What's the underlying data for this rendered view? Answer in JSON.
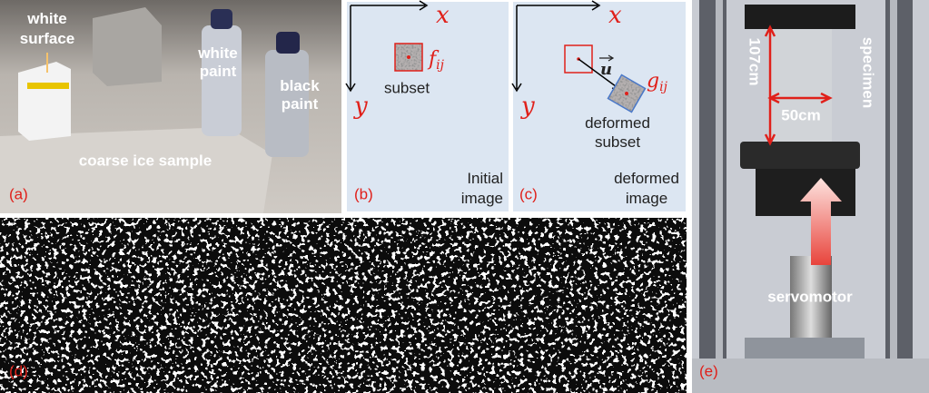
{
  "panel_a": {
    "label": "(a)",
    "white_surface": [
      "white",
      "surface"
    ],
    "white_paint": [
      "white",
      "paint"
    ],
    "black_paint": [
      "black",
      "paint"
    ],
    "sample": "coarse ice sample"
  },
  "panel_b": {
    "label": "(b)",
    "x_axis": "x",
    "y_axis": "y",
    "symbol": {
      "base": "f",
      "subscript": "ij"
    },
    "subset": "subset",
    "caption": [
      "Initial",
      "image"
    ]
  },
  "panel_c": {
    "label": "(c)",
    "x_axis": "x",
    "y_axis": "y",
    "vector": "u",
    "symbol": {
      "base": "g",
      "subscript": "ij"
    },
    "subset": [
      "deformed",
      "subset"
    ],
    "caption": [
      "deformed",
      "image"
    ]
  },
  "panel_d": {
    "label": "(d)"
  },
  "panel_e": {
    "label": "(e)",
    "height": "107cm",
    "width": "50cm",
    "specimen": "specimen",
    "servomotor": "servomotor"
  }
}
